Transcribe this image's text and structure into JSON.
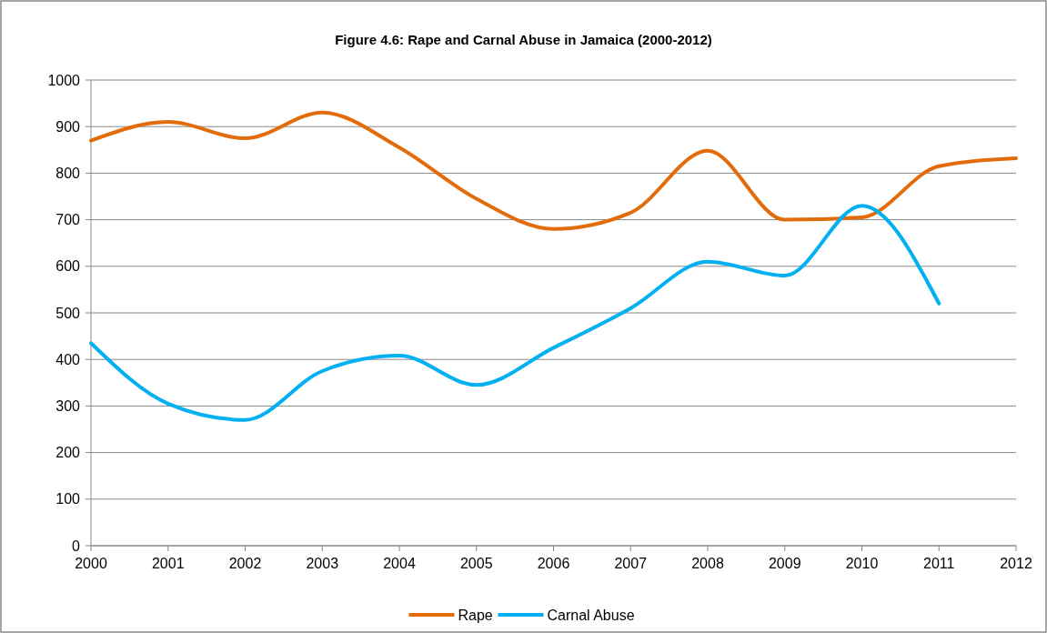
{
  "chart_data": {
    "type": "line",
    "title": "Figure 4.6: Rape and Carnal Abuse in Jamaica (2000-2012)",
    "categories": [
      "2000",
      "2001",
      "2002",
      "2003",
      "2004",
      "2005",
      "2006",
      "2007",
      "2008",
      "2009",
      "2010",
      "2011",
      "2012"
    ],
    "series": [
      {
        "name": "Rape",
        "color": "#e36c0a",
        "values": [
          870,
          910,
          875,
          930,
          855,
          745,
          680,
          715,
          848,
          700,
          705,
          815,
          832
        ]
      },
      {
        "name": "Carnal Abuse",
        "color": "#00b0f0",
        "values": [
          435,
          305,
          270,
          375,
          408,
          345,
          425,
          510,
          610,
          580,
          730,
          520,
          null
        ]
      }
    ],
    "ylim": [
      0,
      1000
    ],
    "yticks": [
      0,
      100,
      200,
      300,
      400,
      500,
      600,
      700,
      800,
      900,
      1000
    ],
    "grid": "y",
    "legend": "bottom",
    "marker": "none",
    "line_style": "solid"
  }
}
